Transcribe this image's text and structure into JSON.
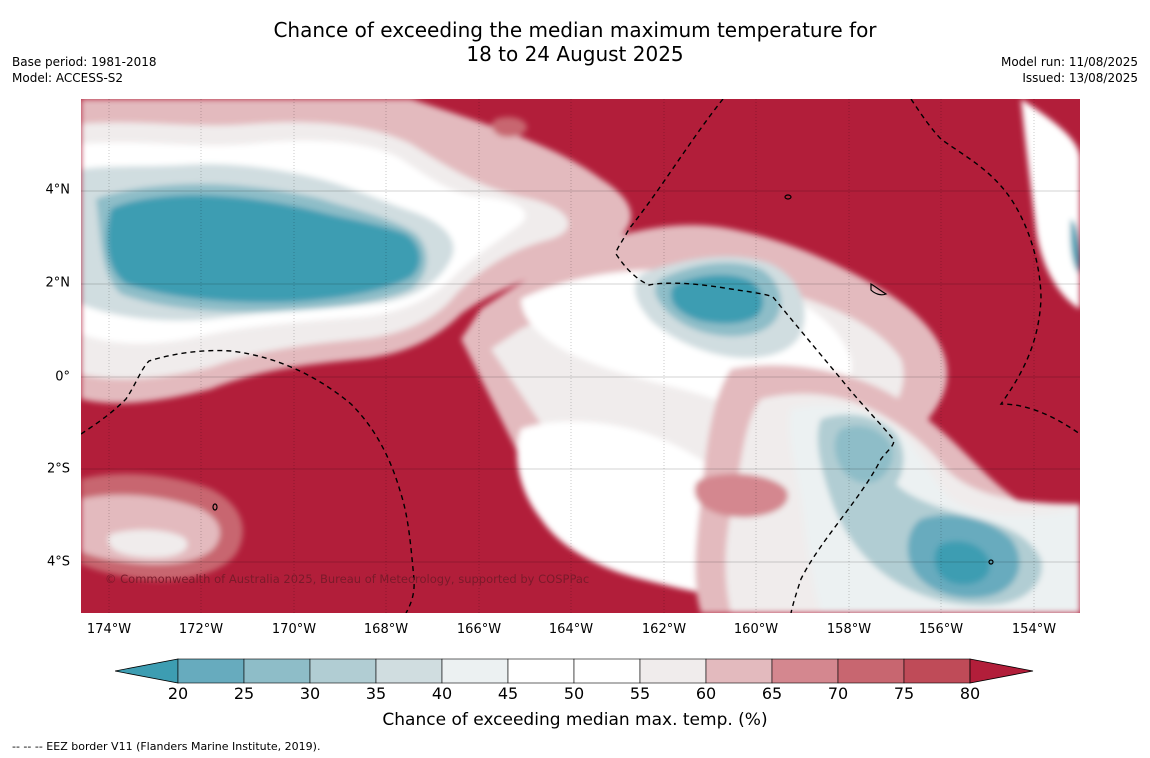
{
  "title": {
    "line1": "Chance of exceeding the median maximum temperature for",
    "line2": "18 to 24 August 2025"
  },
  "meta_left": {
    "base_period": "Base period: 1981-2018",
    "model": "Model: ACCESS-S2"
  },
  "meta_right": {
    "model_run": "Model run: 11/08/2025",
    "issued": "Issued: 13/08/2025"
  },
  "map": {
    "lat_labels": [
      "4°N",
      "2°N",
      "0°",
      "2°S",
      "4°S"
    ],
    "lon_labels": [
      "174°W",
      "172°W",
      "170°W",
      "168°W",
      "166°W",
      "164°W",
      "162°W",
      "160°W",
      "158°W",
      "156°W",
      "154°W"
    ],
    "lon_range": [
      -174.6,
      -153.0
    ],
    "lat_range": [
      -5.2,
      5.85
    ],
    "copyright": "© Commonwealth of Australia 2025, Bureau of Meteorology, supported by COSPPac"
  },
  "colorbar": {
    "ticks": [
      "20",
      "25",
      "30",
      "35",
      "40",
      "45",
      "50",
      "55",
      "60",
      "65",
      "70",
      "75",
      "80"
    ],
    "colors": [
      "#3d9db2",
      "#67abbe",
      "#8ebdc8",
      "#b1cdd3",
      "#d0dde0",
      "#ecf1f2",
      "#ffffff",
      "#ffffff",
      "#f0ecec",
      "#e3babe",
      "#d4878f",
      "#c86670",
      "#bf4b58",
      "#b21e3a"
    ],
    "label": "Chance of exceeding median max. temp. (%)"
  },
  "footer": "--  --  -- EEZ border V11 (Flanders Marine Institute, 2019)."
}
